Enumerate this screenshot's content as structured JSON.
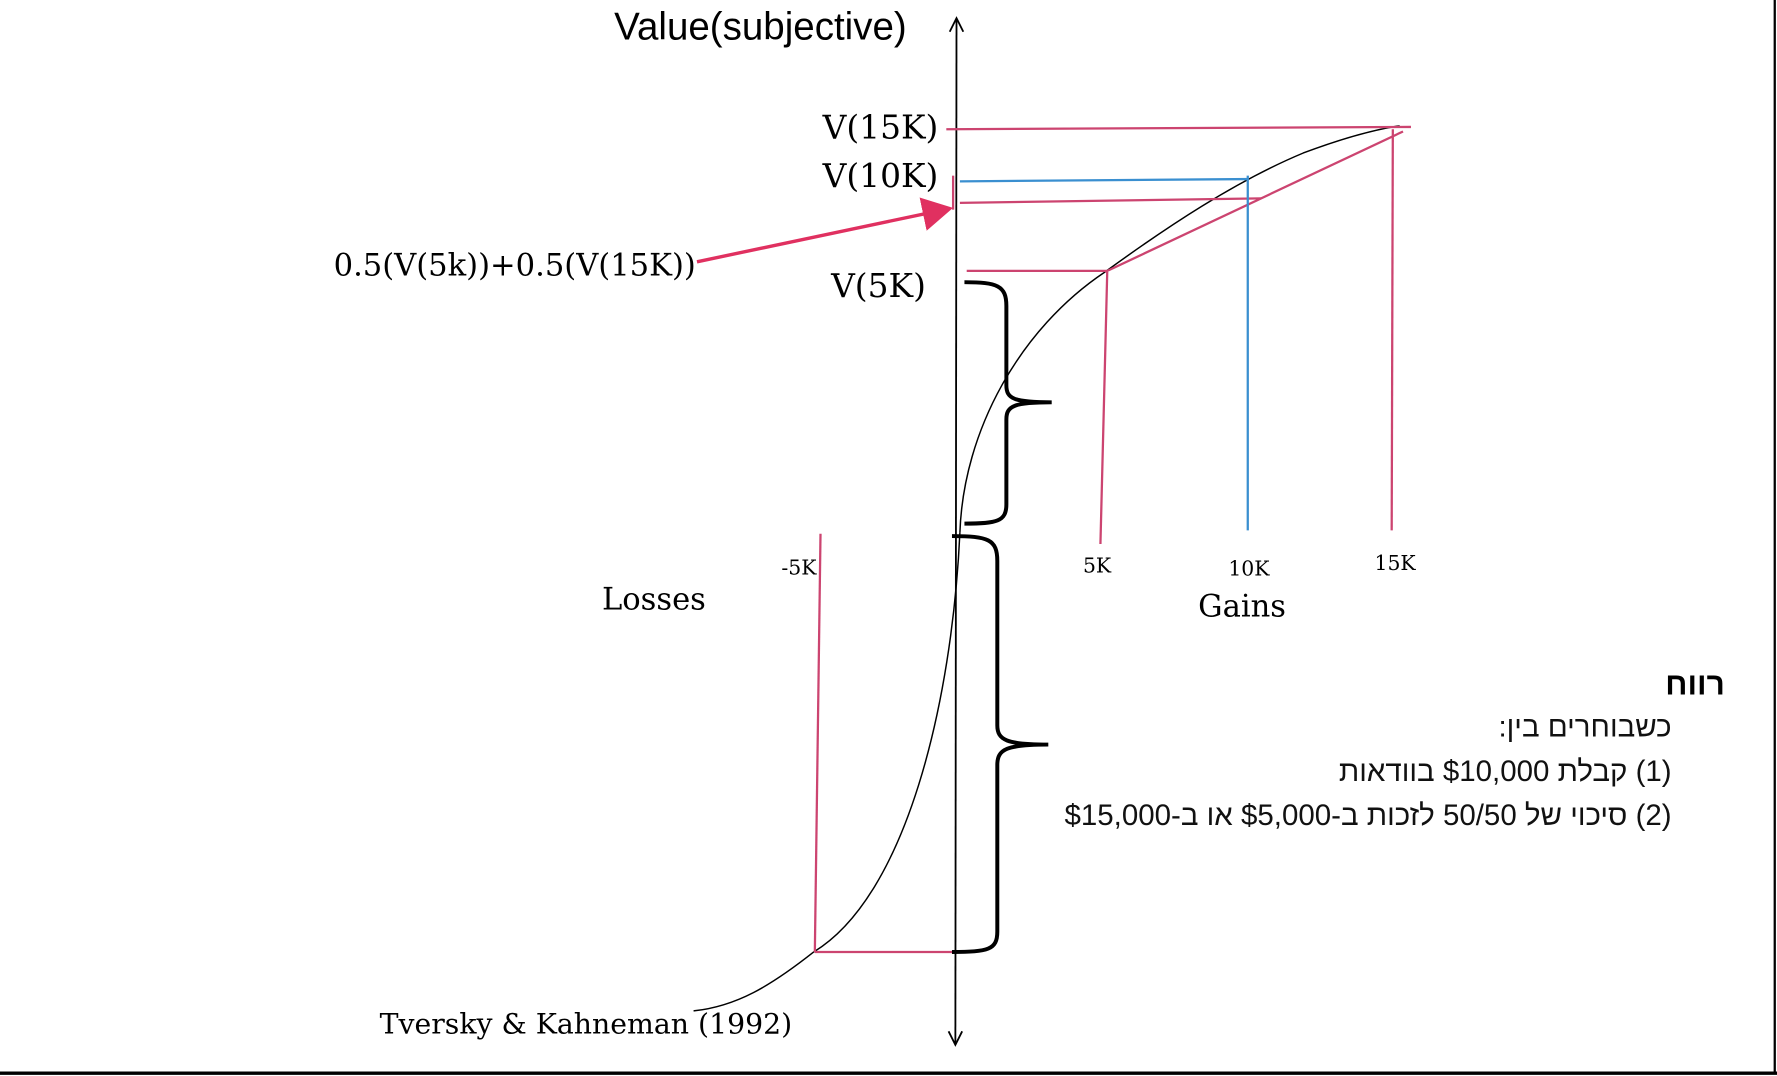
{
  "y_axis_label": "Value(subjective)",
  "labels": {
    "v15k": "V(15K)",
    "v10k": "V(10K)",
    "v5k": "V(5K)",
    "expected": "0.5(V(5k))+0.5(V(15K))",
    "tick_neg5k": "-5K",
    "tick_5k": "5K",
    "tick_10k": "10K",
    "tick_15k": "15K",
    "losses": "Losses",
    "gains": "Gains",
    "citation": "Tversky & Kahneman (1992)"
  },
  "note": {
    "title": "רווח",
    "lines": [
      "כשבוחרים בין:",
      "(1) קבלת $10,000 בוודאות",
      "(2) סיכוי של 50/50 לזכות ב-$5,000 או ב-$15,000"
    ]
  },
  "colors": {
    "curve": "#000000",
    "pink_guides": "#cc4470",
    "blue_guide": "#3a8fd0",
    "arrow": "#e03060"
  }
}
